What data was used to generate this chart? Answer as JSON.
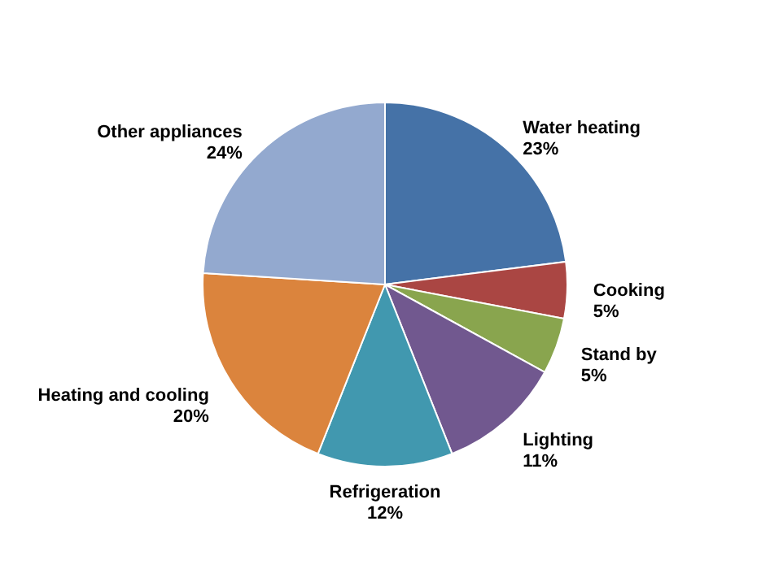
{
  "chart_data": {
    "type": "pie",
    "categories": [
      "Water heating",
      "Cooking",
      "Stand by",
      "Lighting",
      "Refrigeration",
      "Heating and cooling",
      "Other appliances"
    ],
    "values": [
      23,
      5,
      5,
      11,
      12,
      20,
      24
    ],
    "colors": [
      "#4572a7",
      "#aa4643",
      "#89a54e",
      "#71588f",
      "#4198af",
      "#db843d",
      "#93a9cf"
    ],
    "value_labels": [
      "23%",
      "5%",
      "5%",
      "11%",
      "12%",
      "20%",
      "24%"
    ],
    "legend": false
  }
}
